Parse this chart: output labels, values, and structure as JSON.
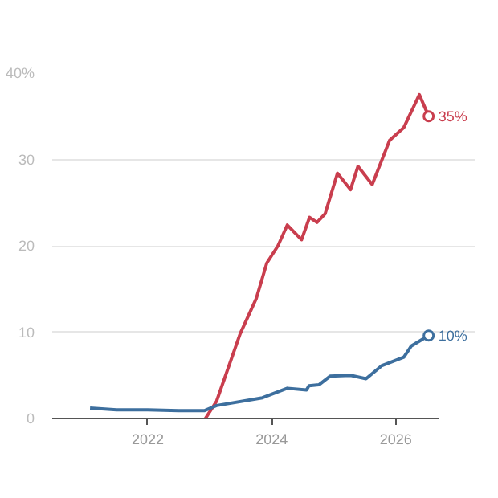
{
  "chart_data": {
    "type": "line",
    "xlim": [
      2020.46,
      2026.71
    ],
    "xticks": [
      2022,
      2024,
      2026
    ],
    "ylim": [
      0,
      40
    ],
    "yticks": [
      0,
      10,
      20,
      30,
      {
        "value": 40,
        "label": "40%"
      }
    ],
    "grid": "y",
    "series": [
      {
        "color": "#c93e4e",
        "x": [
          2022.93,
          2023.11,
          2023.49,
          2023.75,
          2023.92,
          2024.1,
          2024.25,
          2024.48,
          2024.61,
          2024.73,
          2024.86,
          2025.06,
          2025.27,
          2025.39,
          2025.62,
          2025.9,
          2026.13,
          2026.38,
          2026.53
        ],
        "values": [
          0,
          2,
          9.8,
          13.9,
          18,
          20,
          22.4,
          20.7,
          23.3,
          22.7,
          23.7,
          28.4,
          26.5,
          29.2,
          27.1,
          32.2,
          33.7,
          37.5,
          35
        ]
      },
      {
        "color": "#3d6f9e",
        "x": [
          2021.07,
          2021.5,
          2022.0,
          2022.5,
          2022.91,
          2023.11,
          2023.85,
          2024.25,
          2024.56,
          2024.6,
          2024.76,
          2024.94,
          2025.27,
          2025.52,
          2025.77,
          2026.13,
          2026.25,
          2026.53
        ],
        "values": [
          1.2,
          1.0,
          1.0,
          0.9,
          0.9,
          1.5,
          2.4,
          3.5,
          3.3,
          3.8,
          3.9,
          4.9,
          5.0,
          4.6,
          6.1,
          7.1,
          8.4,
          9.6
        ]
      }
    ],
    "annotations": [
      {
        "text": "35%",
        "x": 2026.53,
        "y": 35
      },
      {
        "text": "10%",
        "x": 2026.53,
        "y": 9.6
      }
    ]
  }
}
